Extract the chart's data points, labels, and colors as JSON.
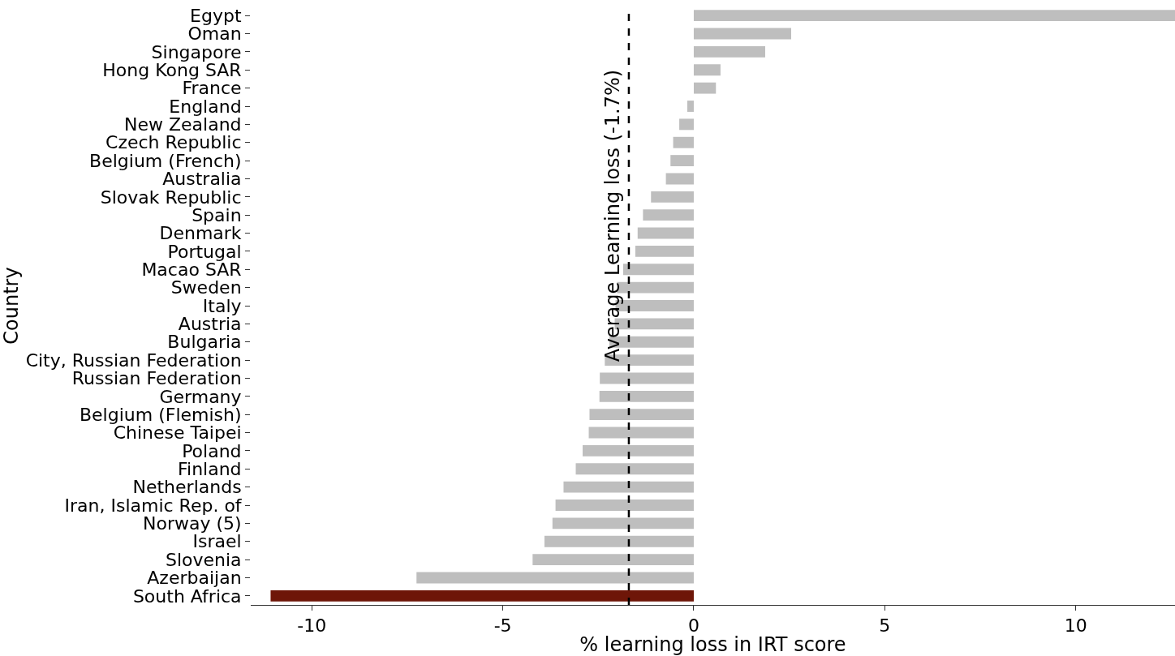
{
  "chart_data": {
    "type": "bar",
    "orientation": "horizontal",
    "xlabel": "% learning loss in IRT score",
    "ylabel": "Country",
    "categories": [
      "Egypt",
      "Oman",
      "Singapore",
      "Hong Kong SAR",
      "France",
      "England",
      "New Zealand",
      "Czech Republic",
      "Belgium (French)",
      "Australia",
      "Slovak Republic",
      "Spain",
      "Denmark",
      "Portugal",
      "Macao SAR",
      "Sweden",
      "Italy",
      "Austria",
      "Bulgaria",
      "City, Russian Federation",
      "Russian Federation",
      "Germany",
      "Belgium (Flemish)",
      "Chinese Taipei",
      "Poland",
      "Finland",
      "Netherlands",
      "Iran, Islamic Rep. of",
      "Norway (5)",
      "Israel",
      "Slovenia",
      "Azerbaijan",
      "South Africa"
    ],
    "values": [
      12.6,
      2.55,
      1.87,
      0.7,
      0.58,
      -0.17,
      -0.38,
      -0.54,
      -0.61,
      -0.73,
      -1.12,
      -1.33,
      -1.47,
      -1.53,
      -1.85,
      -2.01,
      -2.05,
      -2.07,
      -2.21,
      -2.33,
      -2.46,
      -2.47,
      -2.73,
      -2.75,
      -2.91,
      -3.09,
      -3.41,
      -3.62,
      -3.7,
      -3.91,
      -4.22,
      -7.26,
      -11.08
    ],
    "colors": [
      "#bebebe",
      "#bebebe",
      "#bebebe",
      "#bebebe",
      "#bebebe",
      "#bebebe",
      "#bebebe",
      "#bebebe",
      "#bebebe",
      "#bebebe",
      "#bebebe",
      "#bebebe",
      "#bebebe",
      "#bebebe",
      "#bebebe",
      "#bebebe",
      "#bebebe",
      "#bebebe",
      "#bebebe",
      "#bebebe",
      "#bebebe",
      "#bebebe",
      "#bebebe",
      "#bebebe",
      "#bebebe",
      "#bebebe",
      "#bebebe",
      "#bebebe",
      "#bebebe",
      "#bebebe",
      "#bebebe",
      "#bebebe",
      "#6e1608"
    ],
    "xlim": [
      -11.6,
      12.6
    ],
    "xticks": [
      -10,
      -5,
      0,
      5,
      10
    ],
    "ref_lines": [
      {
        "axis": "x",
        "value": -1.7,
        "label": "Average Learning loss (-1.7%)",
        "color": "#000000",
        "line_style": "dashed"
      }
    ],
    "legend": false
  }
}
